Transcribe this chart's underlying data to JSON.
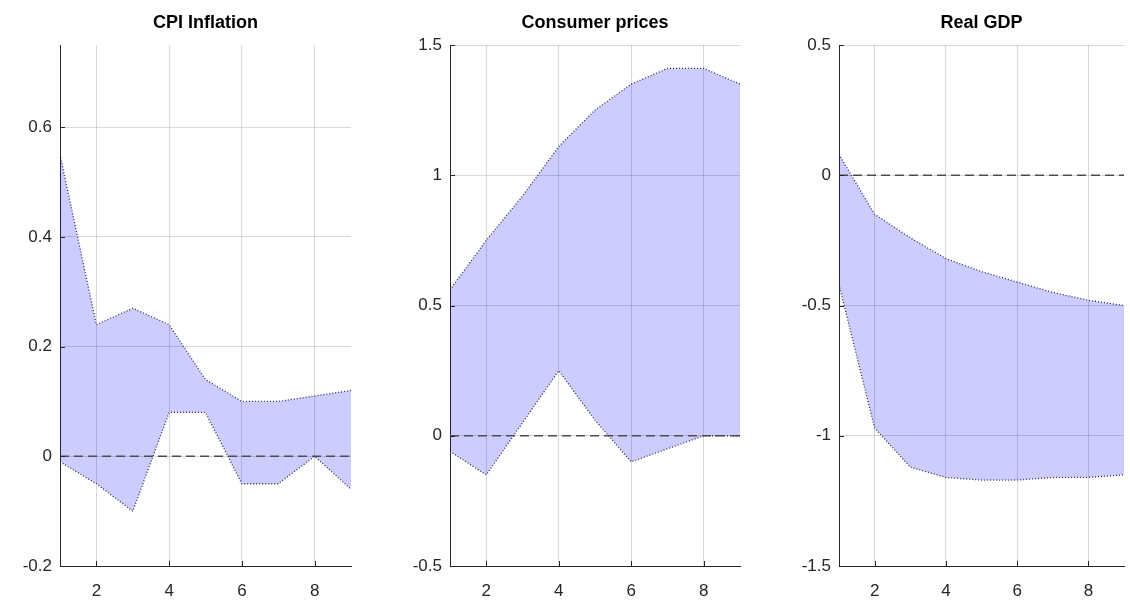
{
  "chart_data": [
    {
      "type": "area",
      "title": "CPI Inflation",
      "x": [
        1,
        2,
        3,
        4,
        5,
        6,
        7,
        8,
        9
      ],
      "series": [
        {
          "color": "#ccccff",
          "values": [
            null,
            null,
            null,
            null,
            null,
            null,
            null,
            null,
            null
          ],
          "lower": [
            -0.01,
            -0.05,
            -0.1,
            0.08,
            0.08,
            -0.05,
            -0.05,
            0,
            -0.06
          ],
          "upper": [
            0.55,
            0.24,
            0.27,
            0.24,
            0.14,
            0.1,
            0.1,
            0.11,
            0.12
          ]
        },
        {
          "type": "line",
          "color": "#2d2d38",
          "values": [
            0.55,
            0.24,
            0.27,
            0.24,
            0.14,
            0.1,
            0.1,
            0.11,
            0.12
          ]
        },
        {
          "type": "line",
          "color": "#2d2d38",
          "values": [
            -0.01,
            -0.05,
            -0.1,
            0.08,
            0.08,
            -0.05,
            -0.05,
            0,
            -0.06
          ]
        }
      ],
      "line_style": "dotted",
      "xlim": [
        1,
        9
      ],
      "xticks": [
        2,
        4,
        6,
        8
      ],
      "ylim": [
        -0.2,
        0.75
      ],
      "yticks": [
        -0.2,
        0,
        0.2,
        0.4,
        0.6
      ],
      "grid": true,
      "ref_lines": [
        {
          "axis": "y",
          "value": 0,
          "color": "#4d4d4d",
          "line_style": "dashed"
        }
      ]
    },
    {
      "type": "area",
      "title": "Consumer prices",
      "x": [
        1,
        2,
        3,
        4,
        5,
        6,
        7,
        8,
        9
      ],
      "series": [
        {
          "color": "#ccccff",
          "values": [
            null,
            null,
            null,
            null,
            null,
            null,
            null,
            null,
            null
          ],
          "lower": [
            -0.06,
            -0.15,
            0.05,
            0.25,
            0.06,
            -0.1,
            -0.05,
            0,
            0
          ],
          "upper": [
            0.56,
            0.75,
            0.92,
            1.11,
            1.25,
            1.35,
            1.41,
            1.41,
            1.35
          ]
        },
        {
          "type": "line",
          "color": "#2d2d38",
          "values": [
            0.56,
            0.75,
            0.92,
            1.11,
            1.25,
            1.35,
            1.41,
            1.41,
            1.35
          ]
        },
        {
          "type": "line",
          "color": "#2d2d38",
          "values": [
            -0.06,
            -0.15,
            0.05,
            0.25,
            0.06,
            -0.1,
            -0.05,
            0,
            0
          ]
        }
      ],
      "line_style": "dotted",
      "xlim": [
        1,
        9
      ],
      "xticks": [
        2,
        4,
        6,
        8
      ],
      "ylim": [
        -0.5,
        1.5
      ],
      "yticks": [
        -0.5,
        0,
        0.5,
        1,
        1.5
      ],
      "grid": true,
      "ref_lines": [
        {
          "axis": "y",
          "value": 0,
          "color": "#4d4d4d",
          "line_style": "dashed"
        }
      ]
    },
    {
      "type": "area",
      "title": "Real GDP",
      "x": [
        1,
        2,
        3,
        4,
        5,
        6,
        7,
        8,
        9
      ],
      "series": [
        {
          "color": "#ccccff",
          "values": [
            null,
            null,
            null,
            null,
            null,
            null,
            null,
            null,
            null
          ],
          "lower": [
            -0.42,
            -0.97,
            -1.12,
            -1.16,
            -1.17,
            -1.17,
            -1.16,
            -1.16,
            -1.15
          ],
          "upper": [
            0.08,
            -0.15,
            -0.24,
            -0.32,
            -0.37,
            -0.41,
            -0.45,
            -0.48,
            -0.5
          ]
        },
        {
          "type": "line",
          "color": "#2d2d38",
          "values": [
            0.08,
            -0.15,
            -0.24,
            -0.32,
            -0.37,
            -0.41,
            -0.45,
            -0.48,
            -0.5
          ]
        },
        {
          "type": "line",
          "color": "#2d2d38",
          "values": [
            -0.42,
            -0.97,
            -1.12,
            -1.16,
            -1.17,
            -1.17,
            -1.16,
            -1.16,
            -1.15
          ]
        }
      ],
      "line_style": "dotted",
      "xlim": [
        1,
        9
      ],
      "xticks": [
        2,
        4,
        6,
        8
      ],
      "ylim": [
        -1.5,
        0.5
      ],
      "yticks": [
        -1.5,
        -1,
        -0.5,
        0,
        0.5
      ],
      "grid": true,
      "ref_lines": [
        {
          "axis": "y",
          "value": 0,
          "color": "#4d4d4d",
          "line_style": "dashed"
        }
      ]
    }
  ]
}
